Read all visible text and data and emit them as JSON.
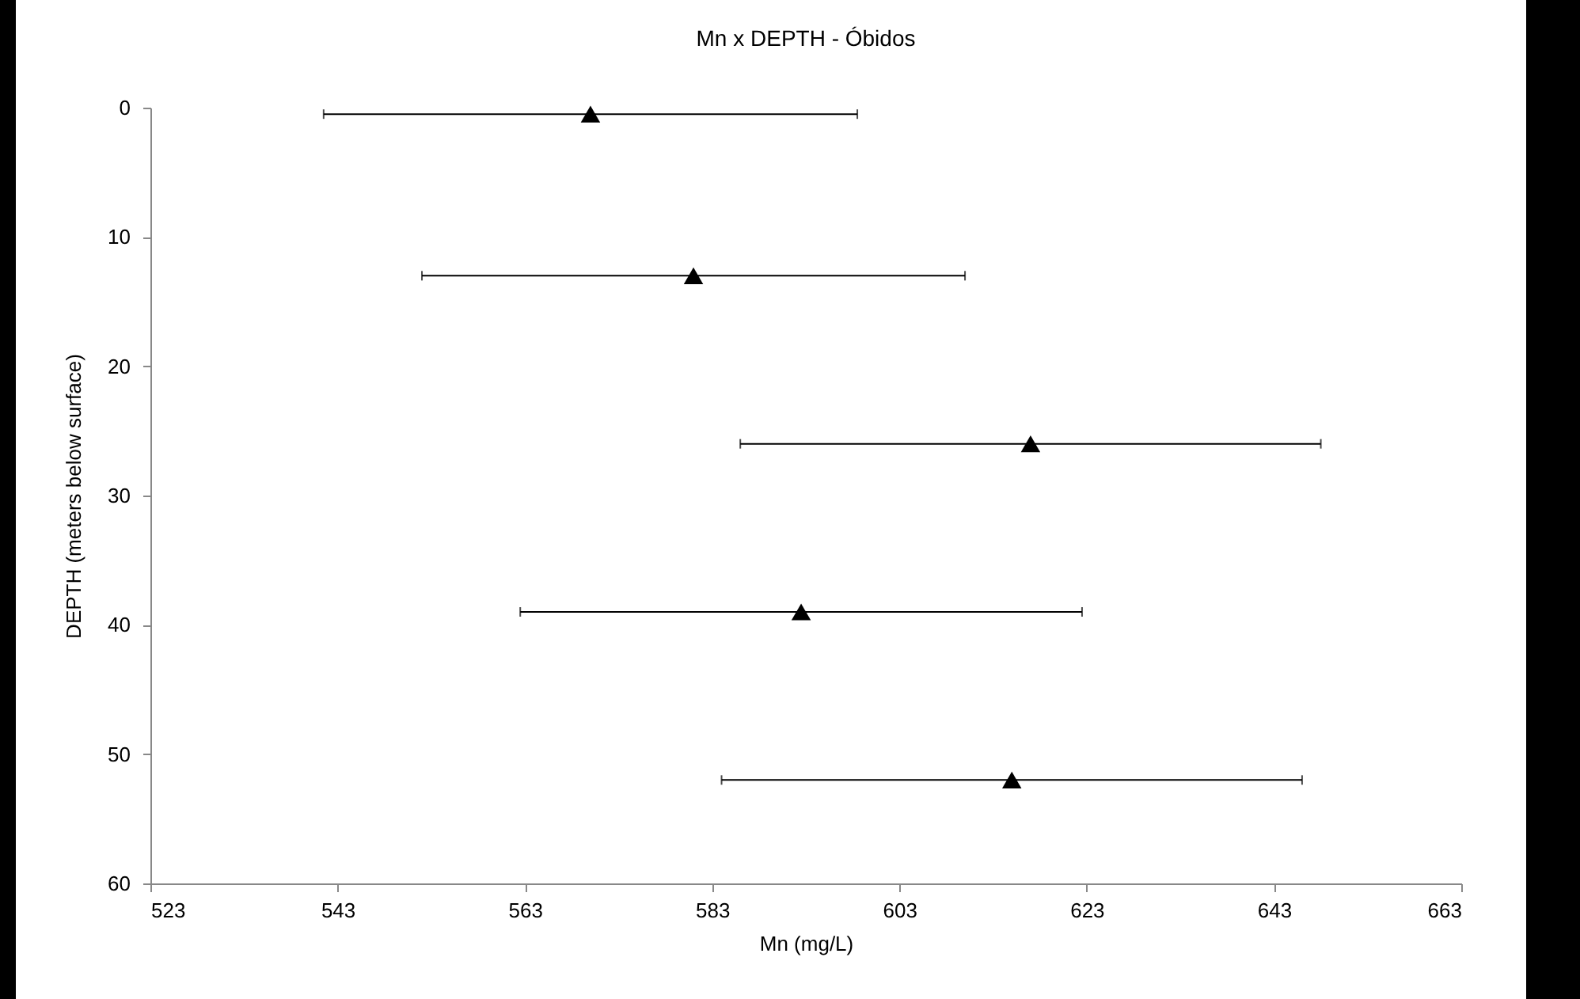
{
  "chart_data": {
    "type": "scatter",
    "title": "Mn x DEPTH - Óbidos",
    "xlabel": "Mn (mg/L)",
    "ylabel": "DEPTH (meters below surface)",
    "x": [
      570,
      581,
      617,
      592.5,
      615
    ],
    "series": [
      {
        "color": "#000000",
        "values": [
          0.5,
          13,
          26,
          39,
          52
        ],
        "xerrors": [
          28.5,
          29,
          31,
          30,
          31
        ]
      }
    ],
    "xlim": [
      523,
      663
    ],
    "xticks": [
      523,
      543,
      563,
      583,
      603,
      623,
      643,
      663
    ],
    "ylim": [
      60,
      0
    ],
    "yticks": [
      0,
      10,
      20,
      30,
      40,
      50,
      60
    ],
    "marker": "triangle",
    "grid": false,
    "legend": false
  }
}
